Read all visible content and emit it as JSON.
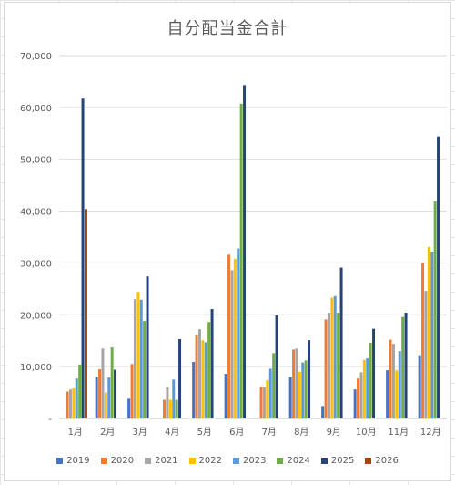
{
  "chart_data": {
    "type": "bar",
    "title": "自分配当金合計",
    "xlabel": "",
    "ylabel": "",
    "ylim": [
      0,
      70000
    ],
    "yticks": [
      0,
      10000,
      20000,
      30000,
      40000,
      50000,
      60000,
      70000
    ],
    "ytick_labels": [
      "-",
      "10,000",
      "20,000",
      "30,000",
      "40,000",
      "50,000",
      "60,000",
      "70,000"
    ],
    "categories": [
      "1月",
      "2月",
      "3月",
      "4月",
      "5月",
      "6月",
      "7月",
      "8月",
      "9月",
      "10月",
      "11月",
      "12月"
    ],
    "grid": true,
    "legend": "bottom",
    "series": [
      {
        "name": "2019",
        "color": "#4472c4",
        "values": [
          0,
          8000,
          3800,
          0,
          10900,
          8600,
          0,
          8000,
          2400,
          5600,
          9300,
          12200
        ]
      },
      {
        "name": "2020",
        "color": "#ed7d31",
        "values": [
          5200,
          9500,
          10500,
          3600,
          16100,
          31600,
          6100,
          13300,
          19100,
          7700,
          15200,
          30100
        ]
      },
      {
        "name": "2021",
        "color": "#a5a5a5",
        "values": [
          5600,
          13500,
          23000,
          6100,
          17200,
          28600,
          6100,
          13500,
          20400,
          8900,
          14400,
          24600
        ]
      },
      {
        "name": "2022",
        "color": "#ffc000",
        "values": [
          5800,
          5000,
          24400,
          3600,
          15100,
          30800,
          7400,
          9000,
          23300,
          11300,
          9300,
          33100
        ]
      },
      {
        "name": "2023",
        "color": "#5b9bd5",
        "values": [
          7700,
          7900,
          22900,
          7500,
          14700,
          32800,
          9600,
          10800,
          23600,
          11600,
          13000,
          32200
        ]
      },
      {
        "name": "2024",
        "color": "#70ad47",
        "values": [
          10400,
          13700,
          18800,
          3600,
          18600,
          60700,
          12600,
          11200,
          20400,
          14600,
          19600,
          41900
        ]
      },
      {
        "name": "2025",
        "color": "#264478",
        "values": [
          61700,
          9400,
          27400,
          15300,
          21100,
          64300,
          19900,
          15100,
          29100,
          17300,
          20400,
          54400
        ]
      },
      {
        "name": "2026",
        "color": "#9e480e",
        "values": [
          40400,
          0,
          0,
          0,
          0,
          0,
          0,
          0,
          0,
          0,
          0,
          0
        ]
      }
    ]
  }
}
